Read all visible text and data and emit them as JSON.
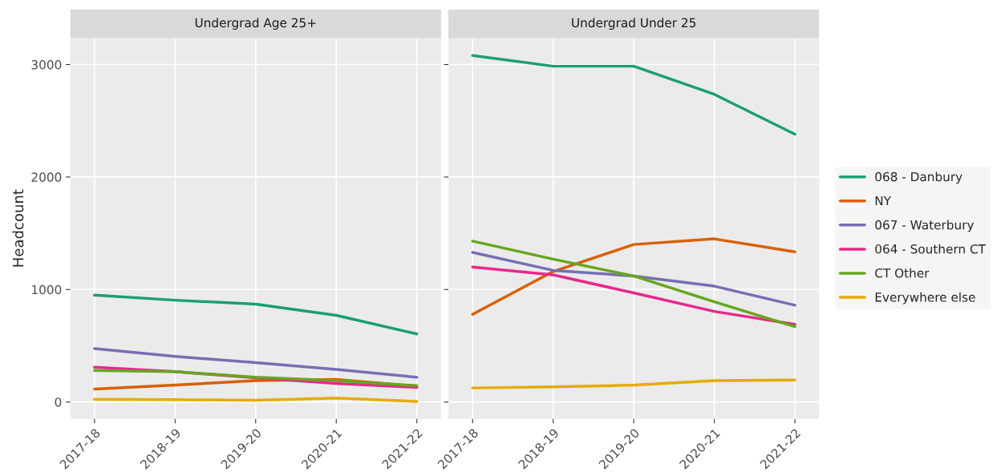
{
  "chart_data": [
    {
      "type": "line",
      "title": "Undergrad Age 25+",
      "ylabel": "Headcount",
      "categories": [
        "2017-18",
        "2018-19",
        "2019-20",
        "2020-21",
        "2021-22"
      ],
      "ylim": [
        -150,
        3235
      ],
      "yticks": [
        0,
        1000,
        2000,
        3000
      ],
      "grid": true,
      "legend": "right",
      "series": [
        {
          "name": "068 - Danbury",
          "color": "#1b9e77",
          "values": [
            950,
            905,
            870,
            770,
            605
          ]
        },
        {
          "name": "NY",
          "color": "#d95f02",
          "values": [
            115,
            150,
            190,
            200,
            140
          ]
        },
        {
          "name": "067 - Waterbury",
          "color": "#7570b3",
          "values": [
            475,
            405,
            350,
            290,
            220
          ]
        },
        {
          "name": "064 - Southern CT",
          "color": "#e7298a",
          "values": [
            310,
            270,
            215,
            165,
            130
          ]
        },
        {
          "name": "CT Other",
          "color": "#66a61e",
          "values": [
            280,
            270,
            220,
            190,
            145
          ]
        },
        {
          "name": "Everywhere else",
          "color": "#e6ab02",
          "values": [
            25,
            20,
            15,
            35,
            5
          ]
        }
      ]
    },
    {
      "type": "line",
      "title": "Undergrad Under 25",
      "categories": [
        "2017-18",
        "2018-19",
        "2019-20",
        "2020-21",
        "2021-22"
      ],
      "ylim": [
        -150,
        3235
      ],
      "yticks": [
        0,
        1000,
        2000,
        3000
      ],
      "grid": true,
      "legend": "right",
      "tick_labels": "x",
      "series": [
        {
          "name": "068 - Danbury",
          "color": "#1b9e77",
          "values": [
            3080,
            2985,
            2985,
            2735,
            2380
          ]
        },
        {
          "name": "NY",
          "color": "#d95f02",
          "values": [
            780,
            1160,
            1400,
            1450,
            1335
          ]
        },
        {
          "name": "067 - Waterbury",
          "color": "#7570b3",
          "values": [
            1330,
            1170,
            1120,
            1030,
            860
          ]
        },
        {
          "name": "064 - Southern CT",
          "color": "#e7298a",
          "values": [
            1200,
            1130,
            970,
            805,
            690
          ]
        },
        {
          "name": "CT Other",
          "color": "#66a61e",
          "values": [
            1430,
            1270,
            1120,
            890,
            670
          ]
        },
        {
          "name": "Everywhere else",
          "color": "#e6ab02",
          "values": [
            125,
            135,
            150,
            190,
            195
          ]
        }
      ]
    }
  ]
}
